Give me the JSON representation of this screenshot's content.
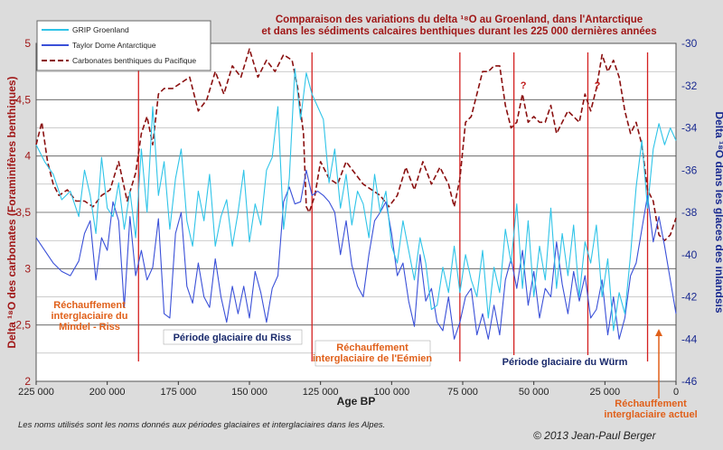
{
  "chart_data": {
    "type": "line",
    "title_line1": "Comparaison des variations du delta ¹⁸O au Groenland, dans l'Antarctique",
    "title_line2": "et dans les sédiments calcaires benthiques durant les 225 000 dernières années",
    "xlabel": "Age BP",
    "ylabel_left": "Delta ¹⁸O des carbonates (Foraminifères benthiques)",
    "ylabel_right": "Delta ¹⁸O dans les glaces des inlandsis",
    "x_ticks": [
      "225 000",
      "200 000",
      "175 000",
      "150 000",
      "125 000",
      "100 000",
      "75 000",
      "50 000",
      "25 000",
      "0"
    ],
    "y_left_ticks": [
      "2",
      "2,5",
      "3",
      "3,5",
      "4",
      "4,5",
      "5"
    ],
    "y_right_ticks": [
      "-46",
      "-44",
      "-42",
      "-40",
      "-38",
      "-36",
      "-34",
      "-32",
      "-30"
    ],
    "xlim": [
      225000,
      0
    ],
    "ylim_left": [
      2,
      5
    ],
    "ylim_right": [
      -46,
      -30
    ],
    "grid": true,
    "legend_position": "top-left",
    "legend": [
      {
        "name": "GRIP Groenland",
        "color": "#2fc4e8",
        "style": "solid"
      },
      {
        "name": "Taylor Dome Antarctique",
        "color": "#3a50d8",
        "style": "solid"
      },
      {
        "name": "Carbonates benthiques du Pacifique",
        "color": "#8a1010",
        "style": "dashed"
      }
    ],
    "series": [
      {
        "name": "Carbonates benthiques du Pacifique",
        "axis": "left",
        "color": "#8a1010",
        "x": [
          225000,
          223000,
          221000,
          219000,
          217000,
          214000,
          211000,
          208000,
          205000,
          202000,
          199000,
          196000,
          193000,
          190000,
          188000,
          186000,
          184000,
          182000,
          180000,
          177000,
          174000,
          171000,
          168000,
          165000,
          162000,
          159000,
          156000,
          153000,
          150000,
          147000,
          144000,
          141000,
          138000,
          135000,
          133000,
          131000,
          130000,
          129000,
          127000,
          125000,
          122000,
          119000,
          116000,
          113000,
          110000,
          107000,
          104000,
          101000,
          98000,
          95000,
          92000,
          89000,
          86000,
          83000,
          80000,
          78000,
          76000,
          74000,
          72000,
          70000,
          68000,
          66000,
          64000,
          62000,
          60000,
          58000,
          56000,
          54000,
          52000,
          50000,
          48000,
          46000,
          44000,
          42000,
          40000,
          38000,
          36000,
          34000,
          32000,
          30000,
          28000,
          26000,
          24000,
          22000,
          20000,
          18000,
          16000,
          14000,
          12000,
          10000,
          8000,
          6000,
          4000,
          2000,
          0
        ],
        "y": [
          4.1,
          4.3,
          3.95,
          3.75,
          3.65,
          3.7,
          3.6,
          3.6,
          3.55,
          3.65,
          3.7,
          3.95,
          3.6,
          3.85,
          4.2,
          4.35,
          4.1,
          4.55,
          4.6,
          4.6,
          4.65,
          4.7,
          4.4,
          4.5,
          4.75,
          4.55,
          4.8,
          4.7,
          4.95,
          4.7,
          4.85,
          4.75,
          4.9,
          4.85,
          4.6,
          4.2,
          3.55,
          3.5,
          3.65,
          3.95,
          3.8,
          3.75,
          3.95,
          3.85,
          3.75,
          3.7,
          3.65,
          3.55,
          3.65,
          3.9,
          3.7,
          3.95,
          3.75,
          3.9,
          3.75,
          3.55,
          3.8,
          4.3,
          4.35,
          4.55,
          4.75,
          4.75,
          4.8,
          4.8,
          4.45,
          4.25,
          4.3,
          4.55,
          4.3,
          4.35,
          4.3,
          4.3,
          4.45,
          4.2,
          4.3,
          4.4,
          4.35,
          4.3,
          4.55,
          4.4,
          4.6,
          4.9,
          4.75,
          4.85,
          4.7,
          4.4,
          4.2,
          4.3,
          4.1,
          3.7,
          3.6,
          3.3,
          3.25,
          3.3,
          3.45
        ]
      },
      {
        "name": "Taylor Dome Antarctique",
        "axis": "right",
        "color": "#3a50d8",
        "x": [
          225000,
          222000,
          219000,
          216000,
          213000,
          210000,
          208000,
          206000,
          204000,
          202000,
          200000,
          198000,
          196000,
          194000,
          192000,
          190000,
          188000,
          186000,
          184000,
          182000,
          180000,
          178000,
          176000,
          174000,
          172000,
          170000,
          168000,
          166000,
          164000,
          162000,
          160000,
          158000,
          156000,
          154000,
          152000,
          150000,
          148000,
          146000,
          144000,
          142000,
          140000,
          138000,
          136000,
          134000,
          132000,
          130000,
          128000,
          126000,
          124000,
          122000,
          120000,
          118000,
          116000,
          114000,
          112000,
          110000,
          108000,
          106000,
          104000,
          102000,
          100000,
          98000,
          96000,
          94000,
          92000,
          90000,
          88000,
          86000,
          84000,
          82000,
          80000,
          78000,
          76000,
          74000,
          72000,
          70000,
          68000,
          66000,
          64000,
          62000,
          60000,
          58000,
          56000,
          54000,
          52000,
          50000,
          48000,
          46000,
          44000,
          42000,
          40000,
          38000,
          36000,
          34000,
          32000,
          30000,
          28000,
          26000,
          24000,
          22000,
          20000,
          18000,
          16000,
          14000,
          12000,
          10000,
          8000,
          6000,
          4000,
          2000,
          0
        ],
        "y": [
          -39.2,
          -39.8,
          -40.4,
          -40.8,
          -41.0,
          -40.3,
          -39.0,
          -38.4,
          -41.2,
          -39.2,
          -39.8,
          -37.5,
          -38.4,
          -42.5,
          -38.2,
          -41.0,
          -39.8,
          -41.2,
          -40.6,
          -38.3,
          -42.8,
          -43.0,
          -39.0,
          -38.0,
          -41.5,
          -42.3,
          -40.4,
          -42.0,
          -42.5,
          -40.2,
          -42.0,
          -43.2,
          -41.5,
          -42.8,
          -41.5,
          -43.0,
          -40.8,
          -41.8,
          -43.2,
          -41.6,
          -41.0,
          -37.5,
          -36.8,
          -37.6,
          -37.5,
          -36.0,
          -37.2,
          -37.0,
          -37.2,
          -37.5,
          -38.0,
          -40.0,
          -38.4,
          -40.5,
          -41.5,
          -42.0,
          -40.0,
          -38.4,
          -38.0,
          -37.5,
          -39.0,
          -41.0,
          -40.4,
          -42.2,
          -43.4,
          -40.0,
          -42.2,
          -41.6,
          -43.2,
          -43.6,
          -42.0,
          -44.0,
          -43.2,
          -42.0,
          -41.6,
          -43.8,
          -42.8,
          -44.0,
          -42.4,
          -43.8,
          -41.2,
          -40.2,
          -41.6,
          -39.8,
          -42.4,
          -40.8,
          -43.0,
          -41.6,
          -42.0,
          -39.4,
          -41.4,
          -42.8,
          -40.8,
          -42.2,
          -41.0,
          -43.0,
          -42.6,
          -41.2,
          -43.8,
          -42.0,
          -44.0,
          -43.0,
          -41.0,
          -40.4,
          -38.8,
          -37.2,
          -39.4,
          -38.2,
          -39.6,
          -41.2,
          -42.8
        ]
      },
      {
        "name": "GRIP Groenland",
        "axis": "right",
        "color": "#2fc4e8",
        "x": [
          225000,
          222000,
          219000,
          216000,
          213000,
          210000,
          208000,
          206000,
          204000,
          202000,
          200000,
          198000,
          196000,
          194000,
          192000,
          190000,
          188000,
          186000,
          184000,
          182000,
          180000,
          178000,
          176000,
          174000,
          172000,
          170000,
          168000,
          166000,
          164000,
          162000,
          160000,
          158000,
          156000,
          154000,
          152000,
          150000,
          148000,
          146000,
          144000,
          142000,
          140000,
          138000,
          136000,
          134000,
          132000,
          130000,
          128000,
          126000,
          124000,
          122000,
          120000,
          118000,
          116000,
          114000,
          112000,
          110000,
          108000,
          106000,
          104000,
          102000,
          100000,
          98000,
          96000,
          94000,
          92000,
          90000,
          88000,
          86000,
          84000,
          82000,
          80000,
          78000,
          76000,
          74000,
          72000,
          70000,
          68000,
          66000,
          64000,
          62000,
          60000,
          58000,
          56000,
          54000,
          52000,
          50000,
          48000,
          46000,
          44000,
          42000,
          40000,
          38000,
          36000,
          34000,
          32000,
          30000,
          28000,
          26000,
          24000,
          22000,
          20000,
          18000,
          16000,
          14000,
          12000,
          10000,
          8000,
          6000,
          4000,
          2000,
          0
        ],
        "y": [
          -34.8,
          -35.6,
          -36.2,
          -37.4,
          -37.0,
          -38.2,
          -36.0,
          -37.2,
          -39.0,
          -35.4,
          -37.8,
          -38.2,
          -36.6,
          -38.8,
          -37.0,
          -39.2,
          -35.0,
          -38.0,
          -33.0,
          -37.2,
          -35.6,
          -38.8,
          -36.4,
          -35.0,
          -38.4,
          -39.6,
          -37.0,
          -38.4,
          -36.2,
          -39.6,
          -38.2,
          -37.4,
          -39.6,
          -38.0,
          -36.0,
          -39.4,
          -37.6,
          -38.6,
          -36.0,
          -35.4,
          -33.0,
          -38.8,
          -36.4,
          -31.2,
          -33.6,
          -31.4,
          -32.4,
          -33.0,
          -33.6,
          -36.6,
          -35.0,
          -37.8,
          -36.2,
          -38.6,
          -37.0,
          -37.6,
          -39.2,
          -36.2,
          -38.0,
          -37.0,
          -39.6,
          -40.4,
          -38.4,
          -39.8,
          -41.2,
          -39.2,
          -40.4,
          -42.6,
          -42.4,
          -40.6,
          -41.8,
          -39.6,
          -41.8,
          -40.0,
          -41.2,
          -42.0,
          -39.8,
          -43.0,
          -40.6,
          -41.8,
          -38.8,
          -40.4,
          -37.6,
          -41.6,
          -38.4,
          -42.0,
          -39.6,
          -41.2,
          -37.8,
          -41.6,
          -39.0,
          -41.0,
          -38.6,
          -42.0,
          -39.4,
          -40.4,
          -38.6,
          -42.0,
          -40.2,
          -43.6,
          -41.8,
          -42.8,
          -40.0,
          -36.8,
          -34.6,
          -37.8,
          -35.0,
          -33.8,
          -34.8,
          -34.0,
          -34.6
        ]
      }
    ],
    "vertical_lines_age": [
      189000,
      128000,
      76000,
      57000,
      31000,
      10000
    ],
    "question_marks": [
      {
        "text": "?",
        "age": 56000,
        "value_left": 4.6
      },
      {
        "text": "?",
        "age": 30000,
        "value_left": 4.6
      }
    ],
    "annotations": [
      {
        "id": "mindel",
        "lines": [
          "Réchauffement",
          "interglaciaire du",
          "Mindel - Riss"
        ],
        "color": "#e0601a"
      },
      {
        "id": "riss",
        "lines": [
          "Période glaciaire du Riss"
        ],
        "color": "#1a2a6c"
      },
      {
        "id": "eemien",
        "lines": [
          "Réchauffement",
          "interglaciaire de l'Eémien"
        ],
        "color": "#e0601a"
      },
      {
        "id": "wurm",
        "lines": [
          "Période glaciaire du Würm"
        ],
        "color": "#1a2a6c"
      },
      {
        "id": "actuel",
        "lines": [
          "Réchauffement",
          "interglaciaire actuel"
        ],
        "color": "#e0601a"
      }
    ]
  },
  "footer": {
    "note": "Les noms utilisés sont les noms donnés aux périodes glaciaires et interglaciaires dans les Alpes.",
    "copyright": "© 2013 Jean-Paul Berger"
  },
  "colors": {
    "background": "#dcdcdc",
    "plot_background": "#ffffff",
    "grid": "#444444",
    "title": "#a01818",
    "left_axis": "#a01818",
    "right_axis": "#1a2a90"
  }
}
